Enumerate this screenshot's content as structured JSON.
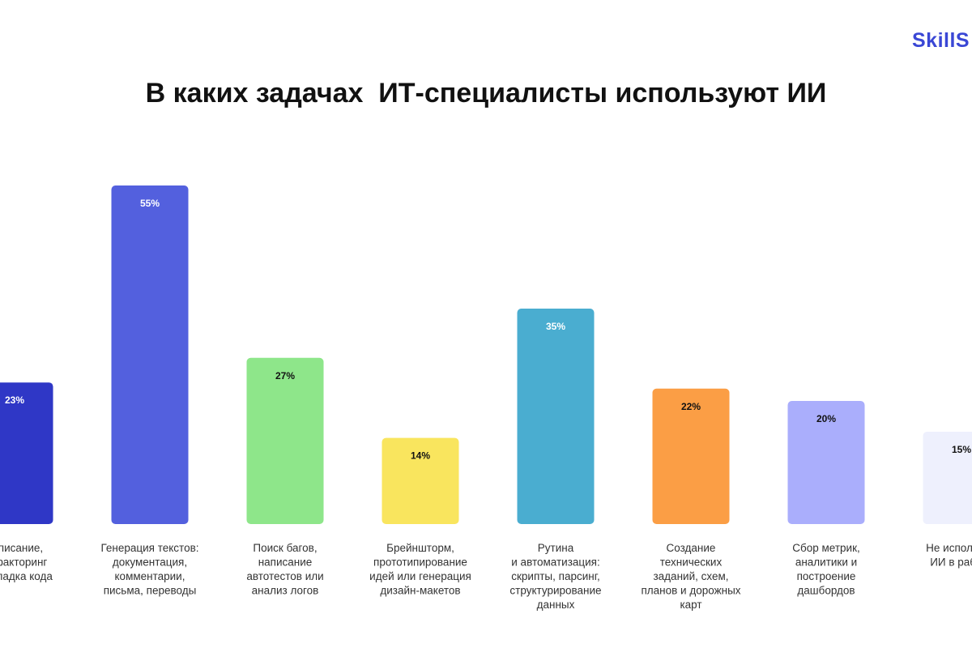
{
  "logo_text": "SkillS",
  "chart_data": {
    "type": "bar",
    "title": "В каких задачах  ИТ-специалисты используют ИИ",
    "xlabel": "",
    "ylabel": "",
    "ylim": [
      0,
      55
    ],
    "grid": false,
    "legend": "none",
    "categories": [
      [
        "написание,",
        "рефакторинг",
        "и отладка кода"
      ],
      [
        "Генерация текстов:",
        "документация,",
        "комментарии,",
        "письма, переводы"
      ],
      [
        "Поиск багов,",
        "написание",
        "автотестов или",
        "анализ логов"
      ],
      [
        "Брейншторм,",
        "прототипирование",
        "идей или генерация",
        "дизайн-макетов"
      ],
      [
        "Рутина",
        "и автоматизация:",
        "скрипты, парсинг,",
        "структурирование",
        "данных"
      ],
      [
        "Создание",
        "технических",
        "заданий, схем,",
        "планов и дорожных",
        "карт"
      ],
      [
        "Сбор метрик,",
        "аналитики и",
        "построение",
        "дашбордов"
      ],
      [
        "Не использую",
        "ИИ в работе"
      ]
    ],
    "values": [
      23,
      55,
      27,
      14,
      35,
      22,
      20,
      15
    ],
    "value_labels": [
      "23%",
      "55%",
      "27%",
      "14%",
      "35%",
      "22%",
      "20%",
      "15%"
    ],
    "colors": [
      "#2f37c6",
      "#5360de",
      "#8ee68a",
      "#f9e55e",
      "#4aadd0",
      "#fb9e45",
      "#aaaefc",
      "#eef0fd"
    ],
    "label_colors": [
      "#ffffff",
      "#ffffff",
      "#111111",
      "#111111",
      "#ffffff",
      "#111111",
      "#111111",
      "#111111"
    ]
  }
}
